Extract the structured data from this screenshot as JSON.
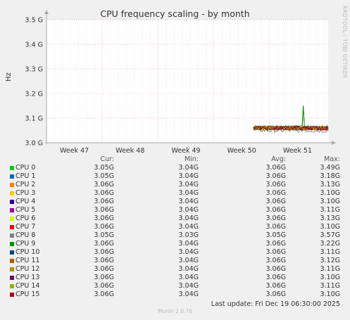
{
  "title": "CPU frequency scaling - by month",
  "side_text": "RRDTOOL / TOBI OETIKER",
  "footer": "Munin 2.0.76",
  "last_update": "Last update:  Fri Dec 19 06:30:00 2025",
  "legend_headers": {
    "cur": "Cur:",
    "min": "Min:",
    "avg": "Avg:",
    "max": "Max:"
  },
  "chart_data": {
    "type": "line",
    "title": "CPU frequency scaling - by month",
    "ylabel": "Hz",
    "xlabel": "",
    "ylim": [
      3.0,
      3.5
    ],
    "y_ticks": [
      3.0,
      3.1,
      3.2,
      3.3,
      3.4,
      3.5
    ],
    "y_tick_labels": [
      "3.0 G",
      "3.1 G",
      "3.2 G",
      "3.3 G",
      "3.4 G",
      "3.5 G"
    ],
    "x_categories": [
      "Week 47",
      "Week 48",
      "Week 49",
      "Week 50",
      "Week 51"
    ],
    "data_start_fraction": 0.735,
    "grid": true,
    "series": [
      {
        "name": "CPU 0",
        "color": "#00cc00",
        "cur": "3.05G",
        "min": "3.04G",
        "avg": "3.06G",
        "max": "3.49G"
      },
      {
        "name": "CPU 1",
        "color": "#0066b3",
        "cur": "3.05G",
        "min": "3.04G",
        "avg": "3.06G",
        "max": "3.18G"
      },
      {
        "name": "CPU 2",
        "color": "#ff8000",
        "cur": "3.06G",
        "min": "3.04G",
        "avg": "3.06G",
        "max": "3.13G"
      },
      {
        "name": "CPU 3",
        "color": "#ffcc00",
        "cur": "3.06G",
        "min": "3.04G",
        "avg": "3.06G",
        "max": "3.10G"
      },
      {
        "name": "CPU 4",
        "color": "#330099",
        "cur": "3.06G",
        "min": "3.04G",
        "avg": "3.06G",
        "max": "3.10G"
      },
      {
        "name": "CPU 5",
        "color": "#990099",
        "cur": "3.06G",
        "min": "3.04G",
        "avg": "3.06G",
        "max": "3.11G"
      },
      {
        "name": "CPU 6",
        "color": "#ccff00",
        "cur": "3.06G",
        "min": "3.04G",
        "avg": "3.06G",
        "max": "3.13G"
      },
      {
        "name": "CPU 7",
        "color": "#ff0000",
        "cur": "3.06G",
        "min": "3.04G",
        "avg": "3.06G",
        "max": "3.10G"
      },
      {
        "name": "CPU 8",
        "color": "#808080",
        "cur": "3.05G",
        "min": "3.03G",
        "avg": "3.05G",
        "max": "3.57G"
      },
      {
        "name": "CPU 9",
        "color": "#008f00",
        "cur": "3.06G",
        "min": "3.04G",
        "avg": "3.06G",
        "max": "3.22G"
      },
      {
        "name": "CPU 10",
        "color": "#00487d",
        "cur": "3.06G",
        "min": "3.04G",
        "avg": "3.06G",
        "max": "3.11G"
      },
      {
        "name": "CPU 11",
        "color": "#b35a00",
        "cur": "3.06G",
        "min": "3.04G",
        "avg": "3.06G",
        "max": "3.12G"
      },
      {
        "name": "CPU 12",
        "color": "#b38f00",
        "cur": "3.06G",
        "min": "3.04G",
        "avg": "3.06G",
        "max": "3.11G"
      },
      {
        "name": "CPU 13",
        "color": "#6b006b",
        "cur": "3.06G",
        "min": "3.04G",
        "avg": "3.06G",
        "max": "3.10G"
      },
      {
        "name": "CPU 14",
        "color": "#8fb300",
        "cur": "3.06G",
        "min": "3.04G",
        "avg": "3.06G",
        "max": "3.11G"
      },
      {
        "name": "CPU 15",
        "color": "#b30000",
        "cur": "3.06G",
        "min": "3.04G",
        "avg": "3.06G",
        "max": "3.10G"
      }
    ]
  }
}
